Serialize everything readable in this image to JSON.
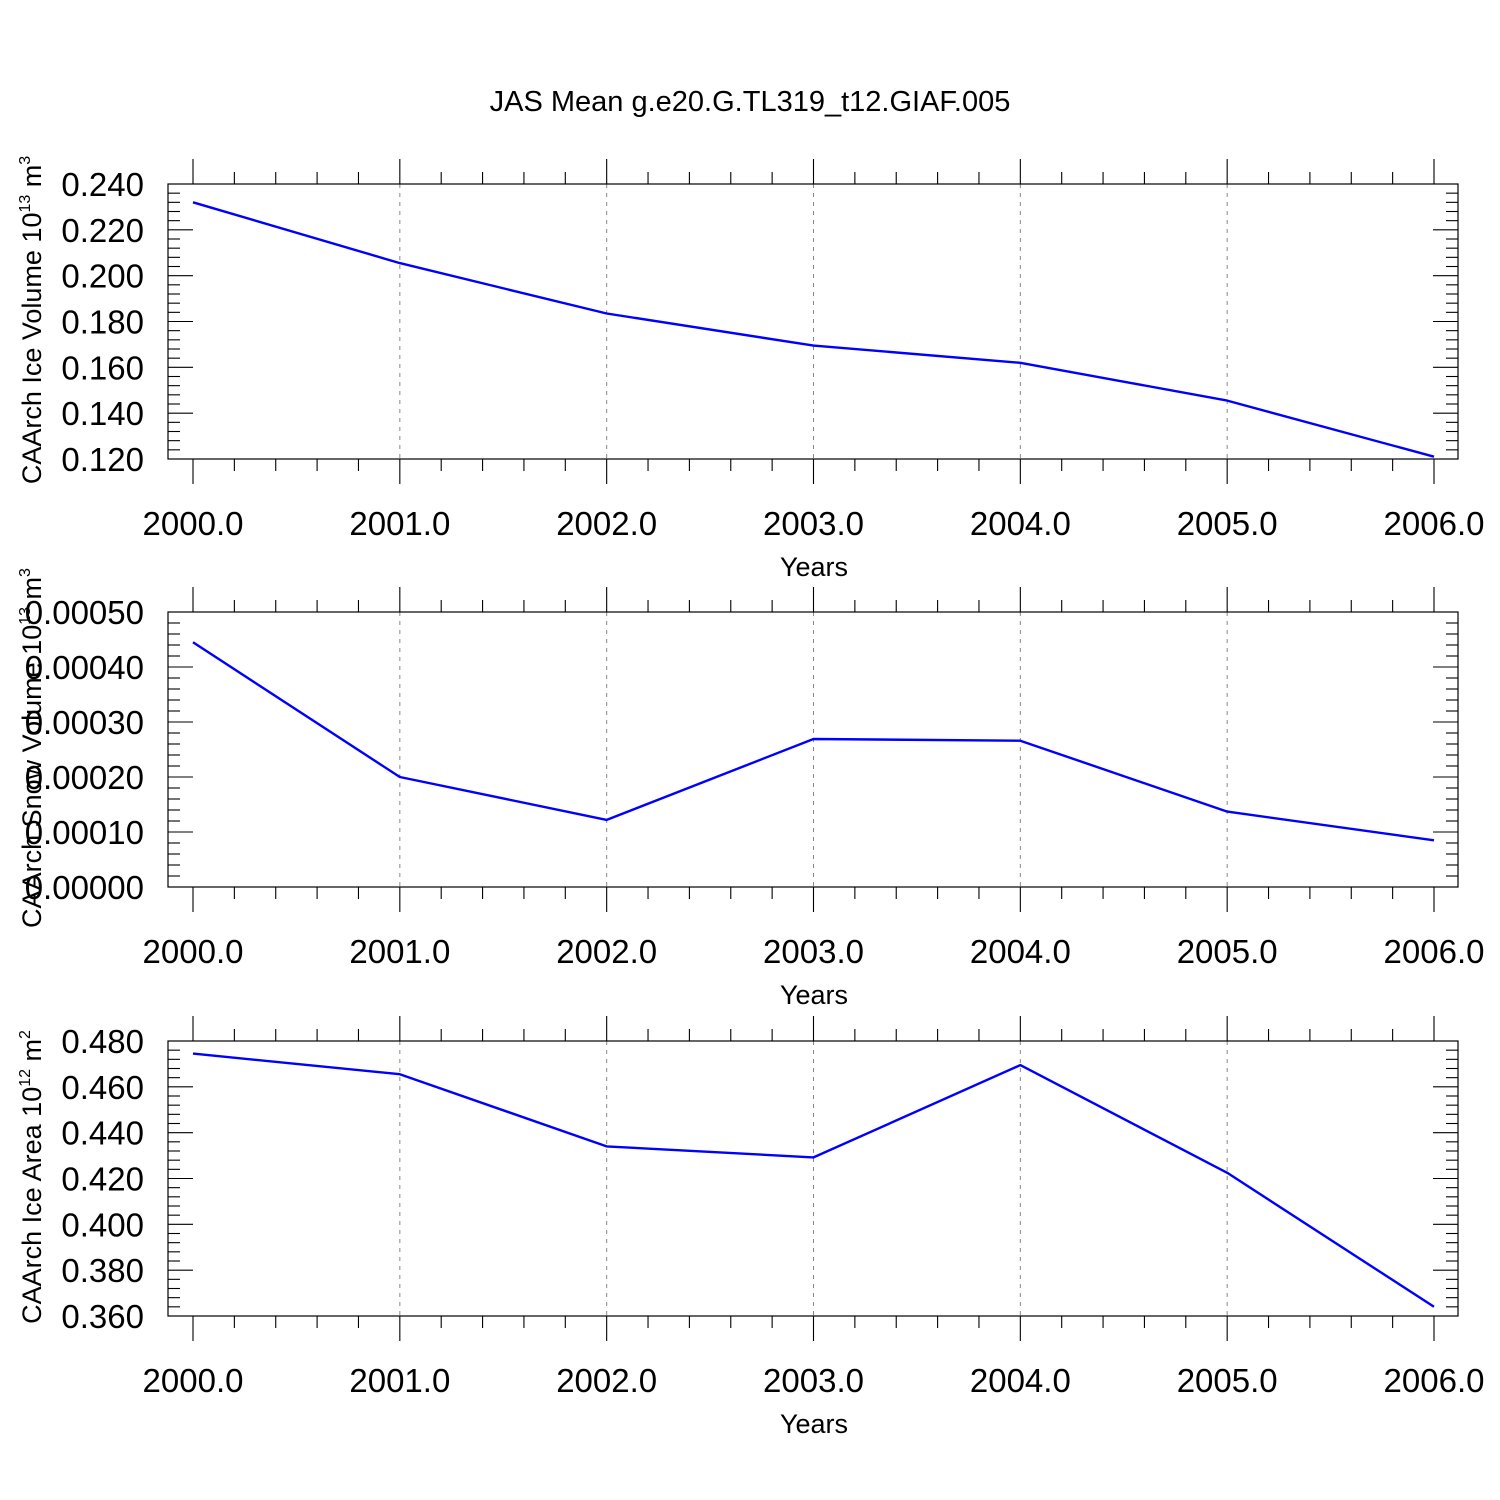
{
  "title": "JAS Mean g.e20.G.TL319_t12.GIAF.005",
  "colors": {
    "series": "#0000ff",
    "axes": "#000000",
    "grid": "#888888"
  },
  "chart_data": [
    {
      "type": "line",
      "title": "",
      "xlabel": "Years",
      "ylabel": "CAArch Ice Volume 10",
      "ylabel_sup": "13",
      "ylabel_unit": "m",
      "ylabel_unit_sup": "3",
      "xlim": [
        2000,
        2006
      ],
      "ylim": [
        0.12,
        0.24
      ],
      "x_ticks": [
        "2000.0",
        "2001.0",
        "2002.0",
        "2003.0",
        "2004.0",
        "2005.0",
        "2006.0"
      ],
      "y_ticks": [
        "0.120",
        "0.140",
        "0.160",
        "0.180",
        "0.200",
        "0.220",
        "0.240"
      ],
      "grid": "vertical-dashed",
      "series": [
        {
          "x": [
            2000,
            2001,
            2002,
            2003,
            2004,
            2005,
            2006
          ],
          "values": [
            0.232,
            0.2055,
            0.1835,
            0.1695,
            0.162,
            0.1455,
            0.121
          ]
        }
      ]
    },
    {
      "type": "line",
      "title": "",
      "xlabel": "Years",
      "ylabel": "CAArch Snow Volume 10",
      "ylabel_sup": "13",
      "ylabel_unit": "m",
      "ylabel_unit_sup": "3",
      "xlim": [
        2000,
        2006
      ],
      "ylim": [
        0.0,
        0.0005
      ],
      "x_ticks": [
        "2000.0",
        "2001.0",
        "2002.0",
        "2003.0",
        "2004.0",
        "2005.0",
        "2006.0"
      ],
      "y_ticks": [
        "0.00000",
        "0.00010",
        "0.00020",
        "0.00030",
        "0.00040",
        "0.00050"
      ],
      "grid": "vertical-dashed",
      "series": [
        {
          "x": [
            2000,
            2001,
            2002,
            2003,
            2004,
            2005,
            2006
          ],
          "values": [
            0.000445,
            0.0002,
            0.000122,
            0.000269,
            0.000266,
            0.000137,
            8.5e-05
          ]
        }
      ]
    },
    {
      "type": "line",
      "title": "",
      "xlabel": "Years",
      "ylabel": "CAArch Ice Area 10",
      "ylabel_sup": "12",
      "ylabel_unit": "m",
      "ylabel_unit_sup": "2",
      "xlim": [
        2000,
        2006
      ],
      "ylim": [
        0.36,
        0.48
      ],
      "x_ticks": [
        "2000.0",
        "2001.0",
        "2002.0",
        "2003.0",
        "2004.0",
        "2005.0",
        "2006.0"
      ],
      "y_ticks": [
        "0.360",
        "0.380",
        "0.400",
        "0.420",
        "0.440",
        "0.460",
        "0.480"
      ],
      "grid": "vertical-dashed",
      "series": [
        {
          "x": [
            2000,
            2001,
            2002,
            2003,
            2004,
            2005,
            2006
          ],
          "values": [
            0.4745,
            0.4655,
            0.434,
            0.4292,
            0.4695,
            0.4225,
            0.364
          ]
        }
      ]
    }
  ]
}
